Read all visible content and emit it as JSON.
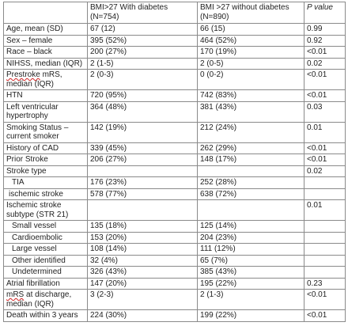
{
  "table": {
    "headers": {
      "col1": "",
      "col2": "BMI>27 With diabetes (N=754)",
      "col3": "BMI >27 without diabetes (N=890)",
      "col4": "P value"
    },
    "rows": [
      {
        "label": "Age, mean (SD)",
        "v1": " 67 (12)",
        "v2": "66 (15)",
        "p": "0.99"
      },
      {
        "label": "Sex – female",
        "v1": "395 (52%)",
        "v2": "464 (52%)",
        "p": "0.92"
      },
      {
        "label": "Race – black",
        "v1": "200 (27%)",
        "v2": "170 (19%)",
        "p": "<0.01"
      },
      {
        "label": "NIHSS, median (IQR)",
        "v1": "2 (1-5)",
        "v2": "2 (0-5)",
        "p": "0.02"
      },
      {
        "label_a": "Prestroke",
        "label_b": " mRS, median (IQR)",
        "v1": "2 (0-3)",
        "v2": "0 (0-2)",
        "p": "<0.01"
      },
      {
        "label": "HTN",
        "v1": "720 (95%)",
        "v2": "742 (83%)",
        "p": "<0.01"
      },
      {
        "label": "Left ventricular hypertrophy",
        "v1": "364 (48%)",
        "v2": "381 (43%)",
        "p": "0.03"
      },
      {
        "label": "Smoking Status – current smoker",
        "v1": "142 (19%)",
        "v2": "212 (24%)",
        "p": "0.01"
      },
      {
        "label": "History of CAD",
        "v1": "339 (45%)",
        "v2": "262 (29%)",
        "p": "<0.01"
      },
      {
        "label": "Prior Stroke",
        "v1": "206 (27%)",
        "v2": "148 (17%)",
        "p": "<0.01"
      },
      {
        "label": "Stroke type",
        "v1": "",
        "v2": "",
        "p": "0.02"
      },
      {
        "label": "TIA",
        "v1": "176 (23%)",
        "v2": "252 (28%)",
        "p": ""
      },
      {
        "label": "ischemic stroke",
        "v1": "578 (77%)",
        "v2": "638 (72%)",
        "p": ""
      },
      {
        "label": "Ischemic stroke subtype (STR 21)",
        "v1": "",
        "v2": "",
        "p": "0.01"
      },
      {
        "label": "Small vessel",
        "v1": "135 (18%)",
        "v2": "125 (14%)",
        "p": ""
      },
      {
        "label": "Cardioembolic",
        "v1": "153 (20%)",
        "v2": "204 (23%)",
        "p": ""
      },
      {
        "label": "Large vessel",
        "v1": "108 (14%)",
        "v2": "111 (12%)",
        "p": ""
      },
      {
        "label": "Other identified",
        "v1": "32 (4%)",
        "v2": "65 (7%)",
        "p": ""
      },
      {
        "label": "Undetermined",
        "v1": "326 (43%)",
        "v2": "385 (43%)",
        "p": ""
      },
      {
        "label": "Atrial fibrillation",
        "v1": "147 (20%)",
        "v2": "195 (22%)",
        "p": "0.23"
      },
      {
        "label_a": "mRS",
        "label_b": " at discharge, median (IQR)",
        "v1": "3 (2-3)",
        "v2": "2 (1-3)",
        "p": "<0.01"
      },
      {
        "label": "Death within 3 years",
        "v1": "224 (30%)",
        "v2": "199 (22%)",
        "p": "<0.01"
      }
    ]
  }
}
